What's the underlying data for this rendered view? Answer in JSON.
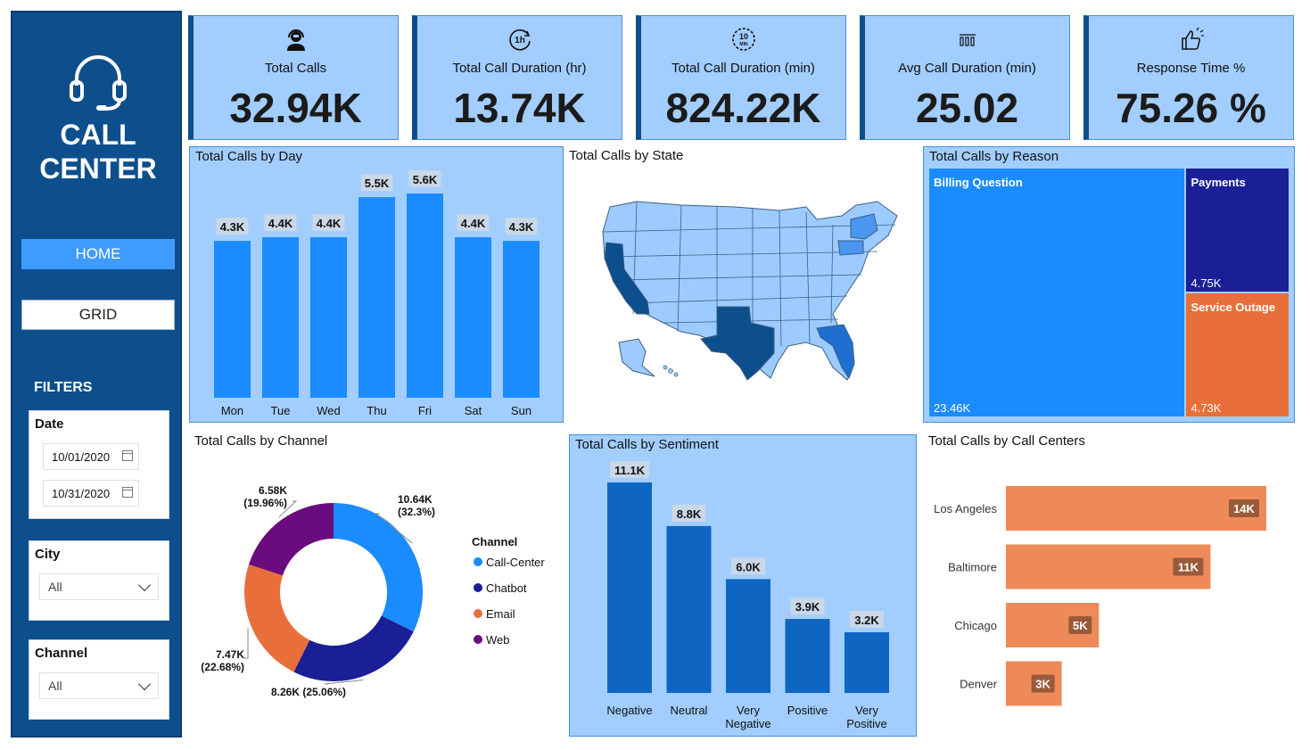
{
  "sidebar": {
    "title_line1": "CALL",
    "title_line2": "CENTER",
    "nav": {
      "home": "HOME",
      "grid": "GRID"
    },
    "filters_label": "FILTERS",
    "date": {
      "label": "Date",
      "start": "10/01/2020",
      "end": "10/31/2020"
    },
    "city": {
      "label": "City",
      "value": "All"
    },
    "channel": {
      "label": "Channel",
      "value": "All"
    }
  },
  "kpis": [
    {
      "label": "Total Calls",
      "value": "32.94K",
      "icon": "headset-agent-icon"
    },
    {
      "label": "Total Call Duration (hr)",
      "value": "13.74K",
      "icon": "1h-clock-icon"
    },
    {
      "label": "Total Call Duration (min)",
      "value": "824.22K",
      "icon": "10-min-timer-icon"
    },
    {
      "label": "Avg Call Duration (min)",
      "value": "25.02",
      "icon": "bar-rising-icon"
    },
    {
      "label": "Response Time %",
      "value": "75.26 %",
      "icon": "thumbs-up-icon"
    }
  ],
  "colors": {
    "sidebar": "#0d4f8c",
    "kpi_bg": "#a2cdff",
    "bar_blue": "#1a8cff",
    "sentiment_bar": "#0f66c2",
    "orange": "#ee8a5a",
    "navy": "#1a1f96",
    "purple": "#6a0b7e"
  },
  "charts": {
    "day": {
      "title": "Total Calls by Day",
      "chart_data": {
        "type": "bar",
        "categories": [
          "Mon",
          "Tue",
          "Wed",
          "Thu",
          "Fri",
          "Sat",
          "Sun"
        ],
        "values": [
          4.3,
          4.4,
          4.4,
          5.5,
          5.6,
          4.4,
          4.3
        ],
        "labels": [
          "4.3K",
          "4.4K",
          "4.4K",
          "5.5K",
          "5.6K",
          "4.4K",
          "4.3K"
        ],
        "ylim": [
          0,
          5.6
        ]
      }
    },
    "state": {
      "title": "Total Calls by State"
    },
    "reason": {
      "title": "Total Calls by Reason",
      "chart_data": {
        "type": "treemap",
        "items": [
          {
            "name": "Billing Question",
            "value": 23.46,
            "label": "23.46K",
            "color": "#1a8cff"
          },
          {
            "name": "Payments",
            "value": 4.75,
            "label": "4.75K",
            "color": "#1a1f96"
          },
          {
            "name": "Service Outage",
            "value": 4.73,
            "label": "4.73K",
            "color": "#e86f3a"
          }
        ]
      }
    },
    "channel": {
      "title": "Total Calls by Channel",
      "legend_title": "Channel",
      "chart_data": {
        "type": "pie",
        "categories": [
          "Call-Center",
          "Chatbot",
          "Email",
          "Web"
        ],
        "values": [
          10.64,
          8.26,
          7.47,
          6.58
        ],
        "labels": [
          {
            "value": "10.64K",
            "pct": "(32.3%)"
          },
          {
            "value": "8.26K (25.06%)",
            "pct": ""
          },
          {
            "value": "7.47K",
            "pct": "(22.68%)"
          },
          {
            "value": "6.58K",
            "pct": "(19.96%)"
          }
        ],
        "colors": [
          "#1a8cff",
          "#1a1f96",
          "#e86f3a",
          "#6a0b7e"
        ]
      }
    },
    "sentiment": {
      "title": "Total Calls by Sentiment",
      "chart_data": {
        "type": "bar",
        "categories": [
          [
            "Negative"
          ],
          [
            "Neutral"
          ],
          [
            "Very",
            "Negative"
          ],
          [
            "Positive"
          ],
          [
            "Very",
            "Positive"
          ]
        ],
        "values": [
          11.1,
          8.8,
          6.0,
          3.9,
          3.2
        ],
        "labels": [
          "11.1K",
          "8.8K",
          "6.0K",
          "3.9K",
          "3.2K"
        ],
        "ylim": [
          0,
          11.1
        ]
      }
    },
    "centers": {
      "title": "Total Calls by Call Centers",
      "chart_data": {
        "type": "bar",
        "orientation": "horizontal",
        "categories": [
          "Los Angeles",
          "Baltimore",
          "Chicago",
          "Denver"
        ],
        "values": [
          14,
          11,
          5,
          3
        ],
        "labels": [
          "14K",
          "11K",
          "5K",
          "3K"
        ],
        "xlim": [
          0,
          14
        ]
      }
    }
  }
}
